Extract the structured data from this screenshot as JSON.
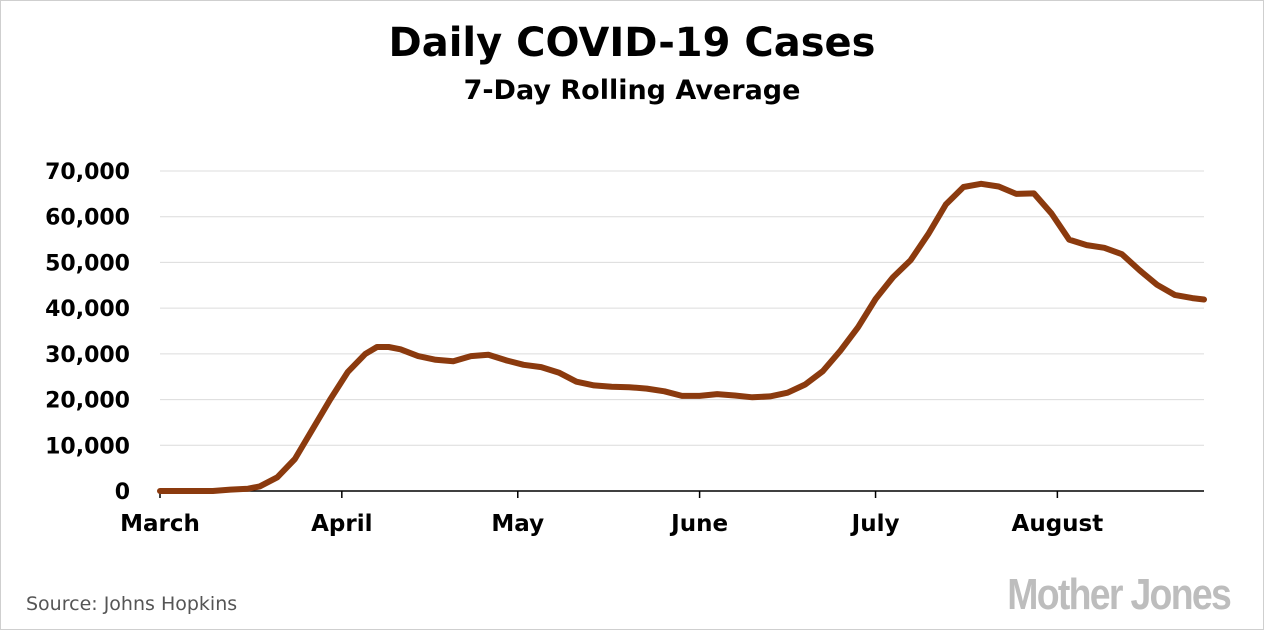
{
  "chart_data": {
    "type": "line",
    "title": "Daily COVID-19 Cases",
    "subtitle": "7-Day Rolling Average",
    "xlabel": "",
    "ylabel": "",
    "ylim": [
      0,
      70000
    ],
    "yticks": [
      0,
      10000,
      20000,
      30000,
      40000,
      50000,
      60000,
      70000
    ],
    "ytick_labels": [
      "0",
      "10,000",
      "20,000",
      "30,000",
      "40,000",
      "50,000",
      "60,000",
      "70,000"
    ],
    "xlim": [
      "2020-03-01",
      "2020-08-26"
    ],
    "xticks": [
      "2020-03-01",
      "2020-04-01",
      "2020-05-01",
      "2020-06-01",
      "2020-07-01",
      "2020-08-01"
    ],
    "xtick_labels": [
      "March",
      "April",
      "May",
      "June",
      "July",
      "August"
    ],
    "grid": "horizontal",
    "series_color": "#8B3A0E",
    "series": [
      {
        "x": [
          "2020-03-01",
          "2020-03-05",
          "2020-03-10",
          "2020-03-13",
          "2020-03-16",
          "2020-03-18",
          "2020-03-21",
          "2020-03-24",
          "2020-03-27",
          "2020-03-30",
          "2020-04-02",
          "2020-04-05",
          "2020-04-07",
          "2020-04-09",
          "2020-04-11",
          "2020-04-14",
          "2020-04-17",
          "2020-04-20",
          "2020-04-23",
          "2020-04-26",
          "2020-04-29",
          "2020-05-02",
          "2020-05-05",
          "2020-05-08",
          "2020-05-11",
          "2020-05-14",
          "2020-05-17",
          "2020-05-20",
          "2020-05-23",
          "2020-05-26",
          "2020-05-29",
          "2020-06-01",
          "2020-06-04",
          "2020-06-07",
          "2020-06-10",
          "2020-06-13",
          "2020-06-16",
          "2020-06-19",
          "2020-06-22",
          "2020-06-25",
          "2020-06-28",
          "2020-07-01",
          "2020-07-04",
          "2020-07-07",
          "2020-07-10",
          "2020-07-13",
          "2020-07-16",
          "2020-07-19",
          "2020-07-22",
          "2020-07-25",
          "2020-07-28",
          "2020-07-31",
          "2020-08-03",
          "2020-08-06",
          "2020-08-09",
          "2020-08-12",
          "2020-08-15",
          "2020-08-18",
          "2020-08-21",
          "2020-08-24",
          "2020-08-26"
        ],
        "values": [
          0,
          0,
          0,
          300,
          500,
          1000,
          3000,
          7000,
          13500,
          20000,
          26000,
          30000,
          31500,
          31500,
          31000,
          29500,
          28700,
          28400,
          29500,
          29800,
          28600,
          27600,
          27100,
          25900,
          23900,
          23100,
          22800,
          22700,
          22400,
          21800,
          20800,
          20800,
          21200,
          20900,
          20500,
          20700,
          21500,
          23300,
          26200,
          30700,
          35800,
          42000,
          46800,
          50500,
          56200,
          62700,
          66500,
          67200,
          66600,
          65000,
          65100,
          60700,
          55000,
          53800,
          53200,
          51800,
          48300,
          45100,
          42900,
          42200,
          41900
        ]
      }
    ],
    "source": "Source: Johns Hopkins",
    "logo_text": "Mother Jones"
  }
}
